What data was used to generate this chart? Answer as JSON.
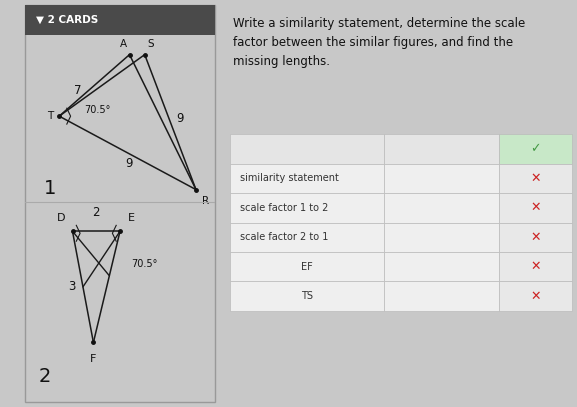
{
  "bg_color": "#c8c8c8",
  "card_bg": "#f2f2f2",
  "card_border": "#999999",
  "card_header_bg": "#4a4a4a",
  "card_header_text": "2 CARDS",
  "card_header_color": "#ffffff",
  "title_text": "Write a similarity statement, determine the scale\nfactor between the similar figures, and find the\nmissing lengths.",
  "table_rows": [
    "similarity statement",
    "scale factor 1 to 2",
    "scale factor 2 to 1",
    "EF",
    "TS"
  ],
  "table_x_color": "#cc2222",
  "table_check_color": "#449944",
  "table_check_bg": "#c8e8c8",
  "table_check_symbol": "✓",
  "table_x_symbol": "✕",
  "line_color": "#1a1a1a",
  "font_color": "#111111",
  "label_fontsize": 7.5,
  "num_fontsize": 8.5,
  "card_num_fontsize": 14
}
